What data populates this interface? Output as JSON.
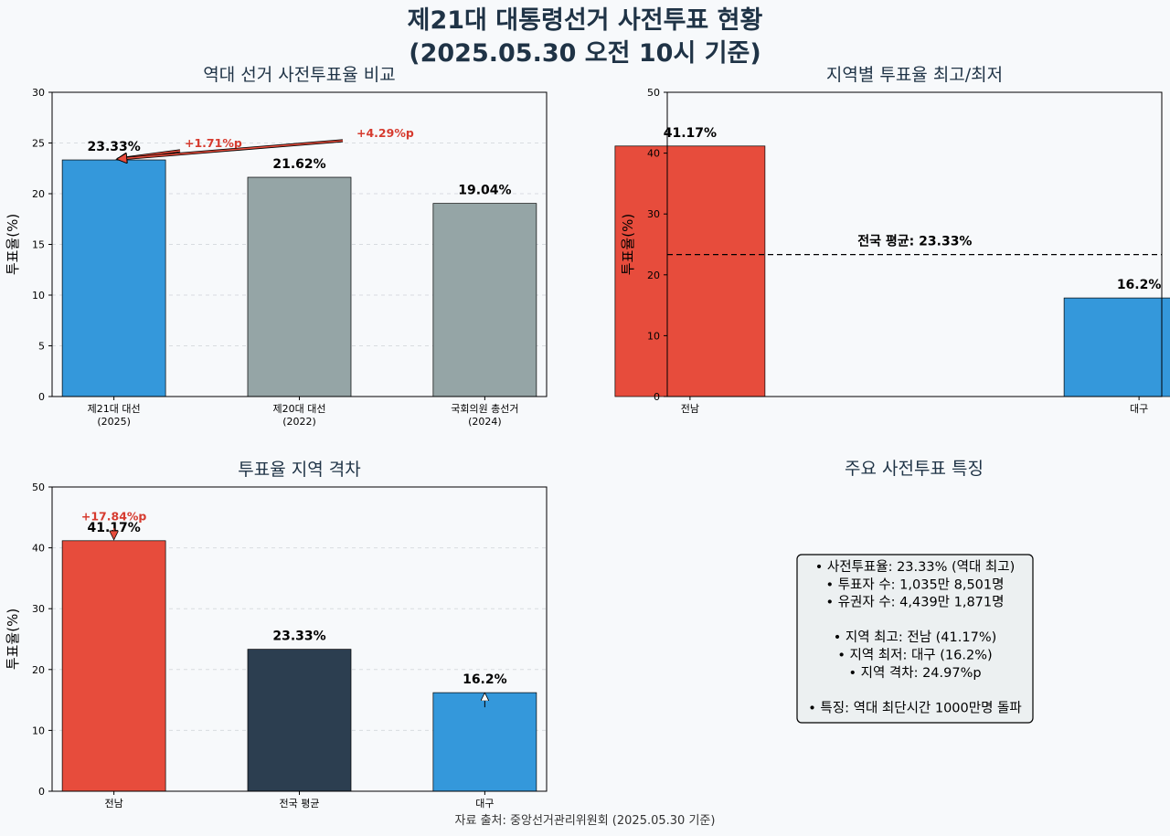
{
  "title_line1": "제21대 대통령선거 사전투표 현황",
  "title_line2": "(2025.05.30 오전 10시 기준)",
  "source": "자료 출처: 중앙선거관리위원회 (2025.05.30 기준)",
  "colors": {
    "blue": "#3498db",
    "gray": "#95a5a6",
    "red": "#e74c3c",
    "navy": "#2c3e50",
    "annotation": "#d63b2f",
    "background": "#f7f9fb",
    "info_box": "#ecf0f1"
  },
  "chart_data": [
    {
      "type": "bar",
      "title": "역대 선거 사전투표율 비교",
      "ylabel": "투표율(%)",
      "ylim": [
        0,
        30
      ],
      "yticks": [
        0,
        5,
        10,
        15,
        20,
        25,
        30
      ],
      "categories": [
        [
          "제21대 대선",
          "(2025)"
        ],
        [
          "제20대 대선",
          "(2022)"
        ],
        [
          "국회의원 총선거",
          "(2024)"
        ]
      ],
      "values": [
        23.33,
        21.62,
        19.04
      ],
      "value_labels": [
        "23.33%",
        "21.62%",
        "19.04%"
      ],
      "bar_colors": [
        "#3498db",
        "#95a5a6",
        "#95a5a6"
      ],
      "grid": true,
      "annotations": [
        {
          "text": "+1.71%p",
          "from_category": 1,
          "to_category": 0
        },
        {
          "text": "+4.29%p",
          "from_category": 2,
          "to_category": 0
        }
      ]
    },
    {
      "type": "bar",
      "title": "지역별 투표율 최고/최저",
      "ylabel": "투표율(%)",
      "ylim": [
        0,
        50
      ],
      "yticks": [
        0,
        10,
        20,
        30,
        40,
        50
      ],
      "categories": [
        [
          "전남"
        ],
        [
          "대구"
        ]
      ],
      "values": [
        41.17,
        16.2
      ],
      "value_labels": [
        "41.17%",
        "16.2%"
      ],
      "bar_colors": [
        "#e74c3c",
        "#3498db"
      ],
      "grid": false,
      "reference_line": {
        "value": 23.33,
        "label": "전국 평균: 23.33%"
      }
    },
    {
      "type": "bar",
      "title": "투표율 지역 격차",
      "ylabel": "투표율(%)",
      "ylim": [
        0,
        50
      ],
      "yticks": [
        0,
        10,
        20,
        30,
        40,
        50
      ],
      "categories": [
        [
          "전남"
        ],
        [
          "전국 평균"
        ],
        [
          "대구"
        ]
      ],
      "values": [
        41.17,
        23.33,
        16.2
      ],
      "value_labels": [
        "41.17%",
        "23.33%",
        "16.2%"
      ],
      "bar_colors": [
        "#e74c3c",
        "#2c3e50",
        "#3498db"
      ],
      "grid": true,
      "annotations": [
        {
          "text": "+17.84%p",
          "category": 0
        }
      ]
    }
  ],
  "info_panel": {
    "title": "주요 사전투표 특징",
    "lines": [
      "• 사전투표율: 23.33% (역대 최고)",
      "• 투표자 수: 1,035만 8,501명",
      "• 유권자 수: 4,439만 1,871명",
      "",
      "• 지역 최고: 전남 (41.17%)",
      "• 지역 최저: 대구 (16.2%)",
      "• 지역 격차: 24.97%p",
      "",
      "• 특징: 역대 최단시간 1000만명 돌파"
    ]
  }
}
